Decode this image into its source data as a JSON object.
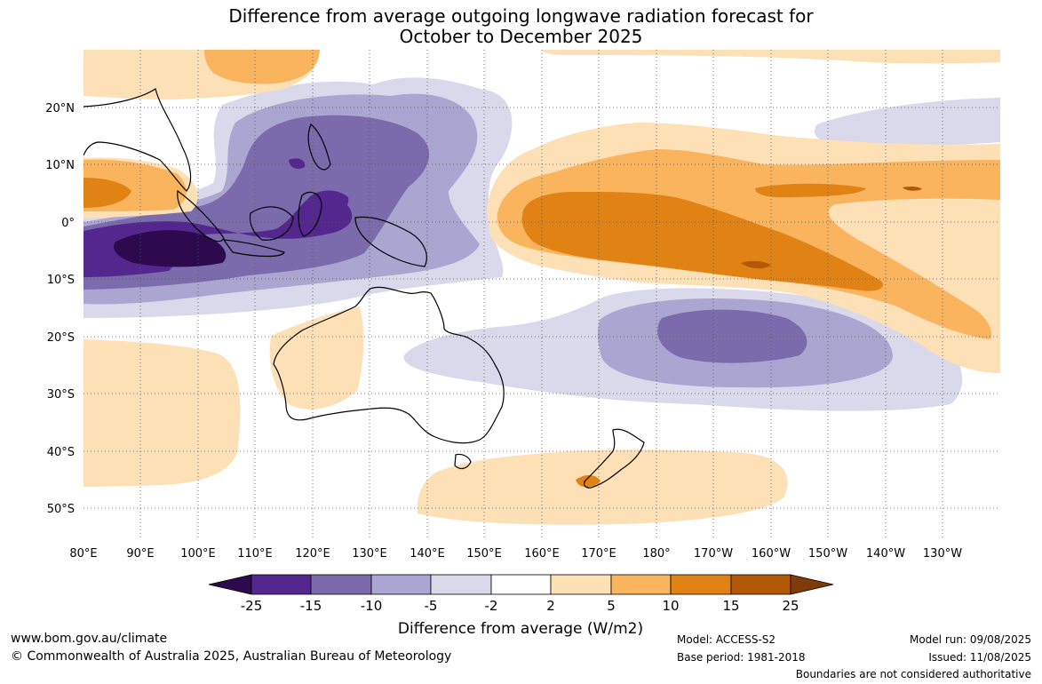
{
  "title_line1": "Difference from average outgoing longwave radiation forecast for",
  "title_line2": "October to December 2025",
  "lat_labels": [
    "20°N",
    "10°N",
    "0°",
    "10°S",
    "20°S",
    "30°S",
    "40°S",
    "50°S"
  ],
  "lat_values": [
    20,
    10,
    0,
    -10,
    -20,
    -30,
    -40,
    -50
  ],
  "lon_labels": [
    "80°E",
    "90°E",
    "100°E",
    "110°E",
    "120°E",
    "130°E",
    "140°E",
    "150°E",
    "160°E",
    "170°E",
    "180°",
    "170°W",
    "160°W",
    "150°W",
    "140°W",
    "130°W"
  ],
  "lon_values": [
    80,
    90,
    100,
    110,
    120,
    130,
    140,
    150,
    160,
    170,
    180,
    190,
    200,
    210,
    220,
    230
  ],
  "legend": {
    "ticks": [
      "-25",
      "-15",
      "-10",
      "-5",
      "-2",
      "2",
      "5",
      "10",
      "15",
      "25"
    ],
    "colors": [
      "#2d0a4e",
      "#54278f",
      "#7b6aac",
      "#aba5d1",
      "#d9d9eb",
      "#ffffff",
      "#fde0b6",
      "#fbb45e",
      "#e08214",
      "#b35806",
      "#7f3b08"
    ],
    "label": "Difference from average (W/m2)"
  },
  "footer": {
    "website": "www.bom.gov.au/climate",
    "copyright": "© Commonwealth of Australia 2025, Australian Bureau of Meteorology",
    "model": "Model: ACCESS-S2",
    "base_period": "Base period: 1981-2018",
    "model_run": "Model run: 09/08/2025",
    "issued": "Issued: 11/08/2025",
    "disclaimer": "Boundaries are not considered authoritative"
  }
}
